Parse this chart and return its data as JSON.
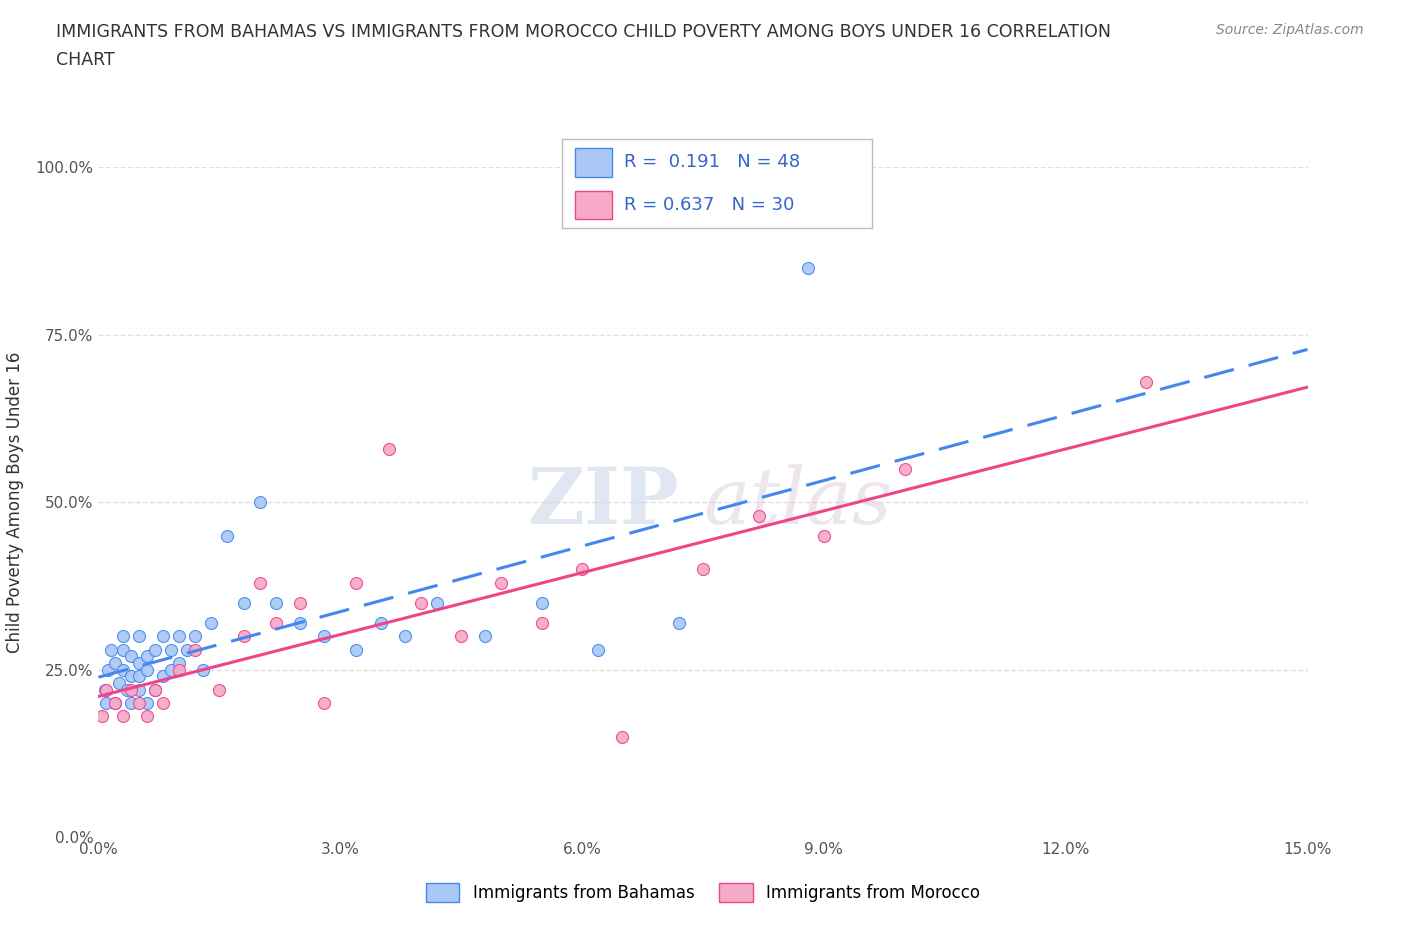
{
  "title_line1": "IMMIGRANTS FROM BAHAMAS VS IMMIGRANTS FROM MOROCCO CHILD POVERTY AMONG BOYS UNDER 16 CORRELATION",
  "title_line2": "CHART",
  "source": "Source: ZipAtlas.com",
  "ylabel": "Child Poverty Among Boys Under 16",
  "R1": "0.191",
  "N1": "48",
  "R2": "0.637",
  "N2": "30",
  "color1": "#aac8f5",
  "color2": "#f5aac8",
  "line_color1": "#4488ee",
  "line_color2": "#ee4488",
  "legend_label1": "Immigrants from Bahamas",
  "legend_label2": "Immigrants from Morocco",
  "xmin": 0.0,
  "xmax": 0.15,
  "ymin": 0.0,
  "ymax": 1.0,
  "xtick_vals": [
    0.0,
    0.03,
    0.06,
    0.09,
    0.12,
    0.15
  ],
  "xtick_labels": [
    "0.0%",
    "3.0%",
    "6.0%",
    "9.0%",
    "12.0%",
    "15.0%"
  ],
  "ytick_vals": [
    0.0,
    0.25,
    0.5,
    0.75,
    1.0
  ],
  "ytick_labels": [
    "0.0%",
    "25.0%",
    "50.0%",
    "75.0%",
    "100.0%"
  ],
  "bahamas_x": [
    0.0008,
    0.001,
    0.0012,
    0.0015,
    0.002,
    0.002,
    0.0025,
    0.003,
    0.003,
    0.003,
    0.0035,
    0.004,
    0.004,
    0.004,
    0.005,
    0.005,
    0.005,
    0.005,
    0.006,
    0.006,
    0.006,
    0.007,
    0.007,
    0.008,
    0.008,
    0.009,
    0.009,
    0.01,
    0.01,
    0.011,
    0.012,
    0.013,
    0.014,
    0.016,
    0.018,
    0.02,
    0.022,
    0.025,
    0.028,
    0.032,
    0.035,
    0.038,
    0.042,
    0.048,
    0.055,
    0.062,
    0.072,
    0.088
  ],
  "bahamas_y": [
    0.22,
    0.2,
    0.25,
    0.28,
    0.2,
    0.26,
    0.23,
    0.25,
    0.28,
    0.3,
    0.22,
    0.24,
    0.27,
    0.2,
    0.22,
    0.24,
    0.26,
    0.3,
    0.2,
    0.25,
    0.27,
    0.22,
    0.28,
    0.24,
    0.3,
    0.25,
    0.28,
    0.26,
    0.3,
    0.28,
    0.3,
    0.25,
    0.32,
    0.45,
    0.35,
    0.5,
    0.35,
    0.32,
    0.3,
    0.28,
    0.32,
    0.3,
    0.35,
    0.3,
    0.35,
    0.28,
    0.32,
    0.85
  ],
  "morocco_x": [
    0.0005,
    0.001,
    0.002,
    0.003,
    0.004,
    0.005,
    0.006,
    0.007,
    0.008,
    0.01,
    0.012,
    0.015,
    0.018,
    0.02,
    0.022,
    0.025,
    0.028,
    0.032,
    0.036,
    0.04,
    0.045,
    0.05,
    0.055,
    0.06,
    0.065,
    0.075,
    0.082,
    0.09,
    0.1,
    0.13
  ],
  "morocco_y": [
    0.18,
    0.22,
    0.2,
    0.18,
    0.22,
    0.2,
    0.18,
    0.22,
    0.2,
    0.25,
    0.28,
    0.22,
    0.3,
    0.38,
    0.32,
    0.35,
    0.2,
    0.38,
    0.58,
    0.35,
    0.3,
    0.38,
    0.32,
    0.4,
    0.15,
    0.4,
    0.48,
    0.45,
    0.55,
    0.68
  ],
  "bg_color": "#ffffff",
  "grid_color": "#e0e0e0"
}
